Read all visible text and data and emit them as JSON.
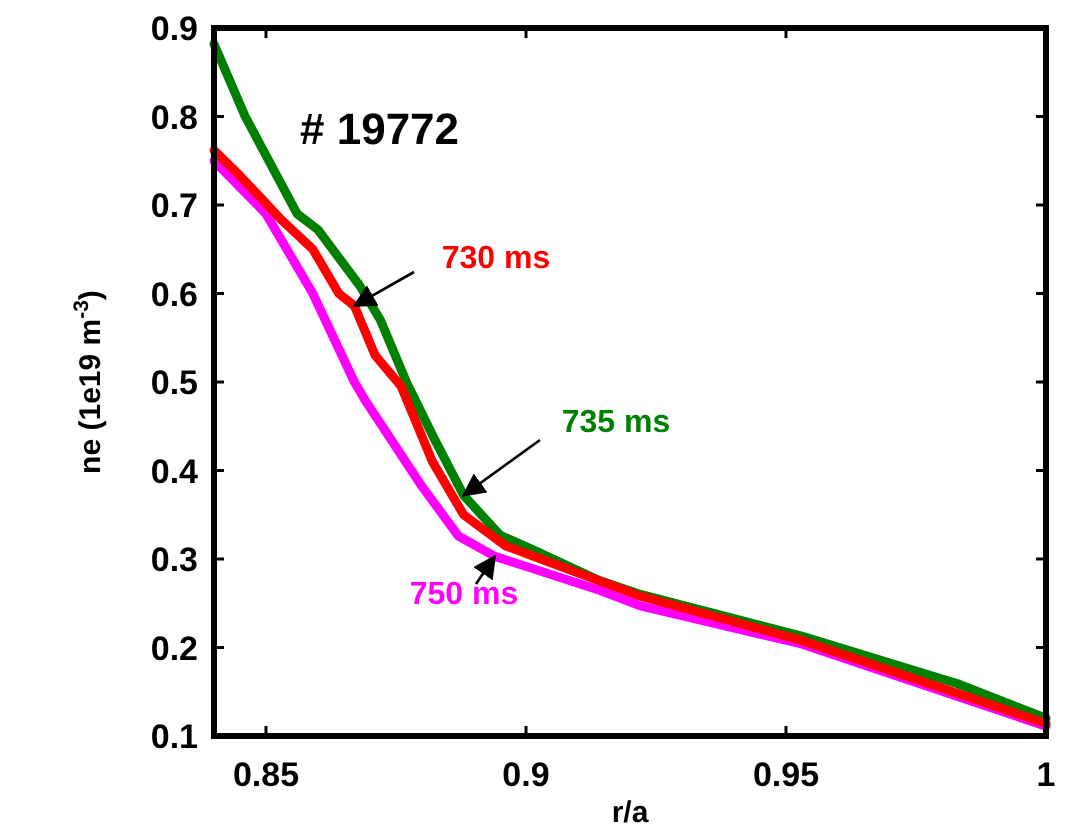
{
  "chart_data": {
    "type": "line",
    "xlabel": "r/a",
    "ylabel": "ne (1e19 m$^{-3}$)",
    "annotations": [
      "# 19772"
    ],
    "xlim": [
      0.84,
      1
    ],
    "ylim": [
      0.1,
      0.9
    ],
    "xticks": [
      0.85,
      0.9,
      0.95,
      1
    ],
    "yticks": [
      0.1,
      0.2,
      0.3,
      0.4,
      0.5,
      0.6,
      0.7,
      0.8,
      0.9
    ],
    "grid": false,
    "line_style": "solid",
    "marker": "none",
    "series": [
      {
        "name": "730 ms",
        "color": "#ff0000",
        "x": [
          0.84,
          0.845,
          0.853,
          0.859,
          0.864,
          0.867,
          0.871,
          0.876,
          0.882,
          0.888,
          0.896,
          0.922,
          0.953,
          1.0
        ],
        "values": [
          0.762,
          0.733,
          0.683,
          0.65,
          0.6,
          0.586,
          0.53,
          0.495,
          0.41,
          0.35,
          0.315,
          0.258,
          0.208,
          0.114
        ]
      },
      {
        "name": "735 ms",
        "color": "#008000",
        "x": [
          0.84,
          0.846,
          0.856,
          0.86,
          0.868,
          0.872,
          0.877,
          0.882,
          0.888,
          0.895,
          0.9015,
          0.914,
          0.922,
          0.953,
          0.983,
          1.0
        ],
        "values": [
          0.882,
          0.8,
          0.69,
          0.672,
          0.609,
          0.57,
          0.5,
          0.44,
          0.372,
          0.327,
          0.31,
          0.276,
          0.26,
          0.213,
          0.159,
          0.12
        ]
      },
      {
        "name": "750 ms",
        "color": "#ff00ff",
        "x": [
          0.84,
          0.85,
          0.859,
          0.867,
          0.869,
          0.88,
          0.887,
          0.894,
          0.914,
          0.922,
          0.953,
          1.0
        ],
        "values": [
          0.75,
          0.69,
          0.6,
          0.5,
          0.48,
          0.382,
          0.326,
          0.303,
          0.265,
          0.247,
          0.204,
          0.111
        ]
      }
    ]
  }
}
